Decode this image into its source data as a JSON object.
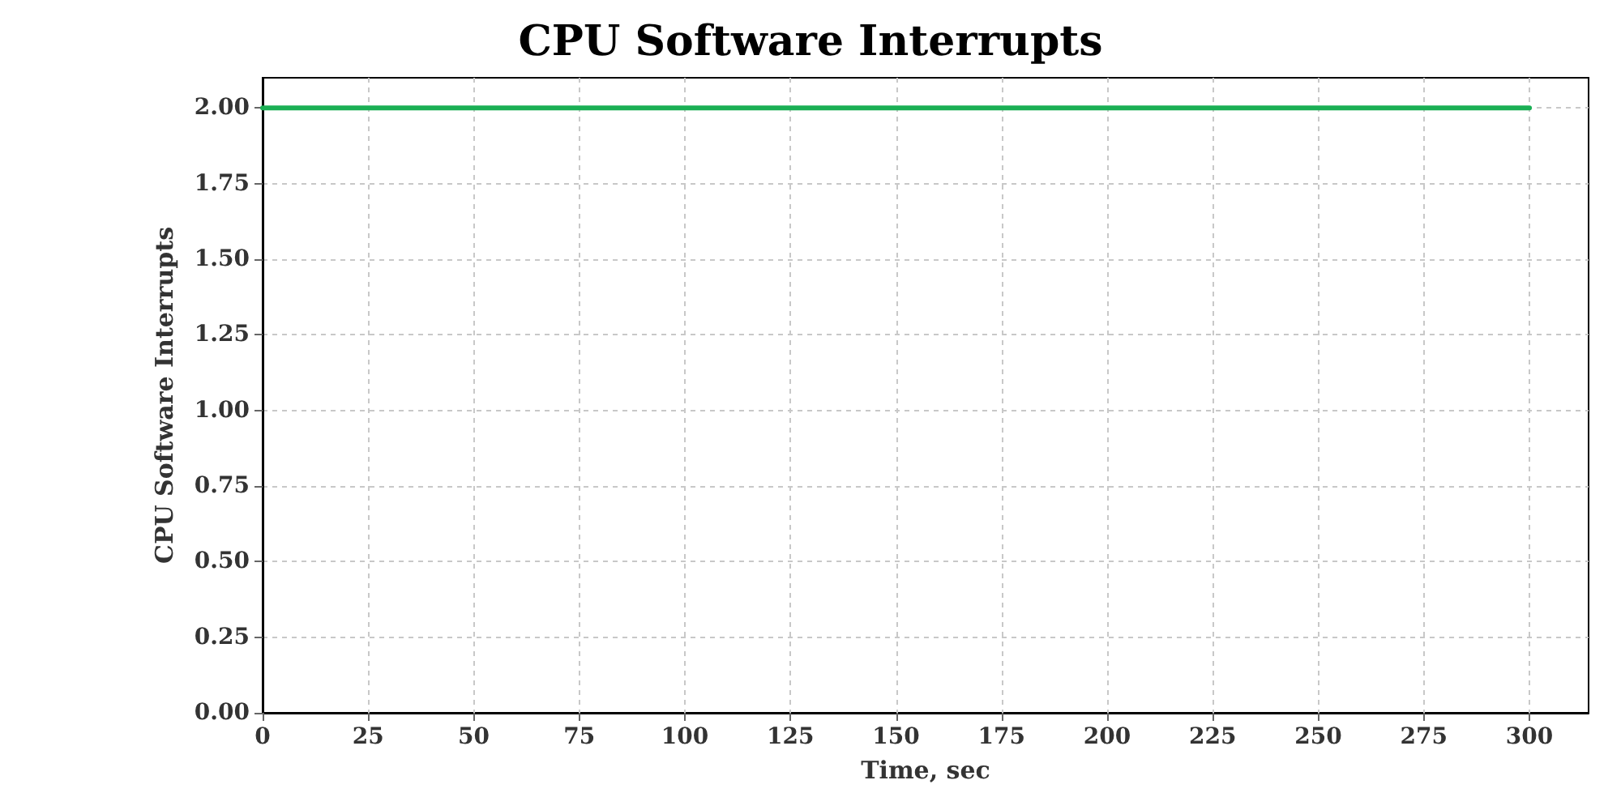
{
  "chart_data": {
    "type": "line",
    "title": "CPU Software Interrupts",
    "xlabel": "Time, sec",
    "ylabel": "CPU Software Interrupts",
    "x": [
      0,
      300
    ],
    "series": [
      {
        "color": "#1aaf54",
        "values": [
          2,
          2
        ]
      }
    ],
    "xlim": [
      0,
      314
    ],
    "xticks": [
      0,
      25,
      50,
      75,
      100,
      125,
      150,
      175,
      200,
      225,
      250,
      275,
      300
    ],
    "ylim": [
      0,
      2.1
    ],
    "yticks": [
      {
        "value": 0,
        "label": "0.00"
      },
      {
        "value": 0.25,
        "label": "0.25"
      },
      {
        "value": 0.5,
        "label": "0.50"
      },
      {
        "value": 0.75,
        "label": "0.75"
      },
      {
        "value": 1,
        "label": "1.00"
      },
      {
        "value": 1.25,
        "label": "1.25"
      },
      {
        "value": 1.5,
        "label": "1.50"
      },
      {
        "value": 1.75,
        "label": "1.75"
      },
      {
        "value": 2,
        "label": "2.00"
      }
    ],
    "grid": true,
    "marker": "none",
    "line_style": "solid"
  }
}
